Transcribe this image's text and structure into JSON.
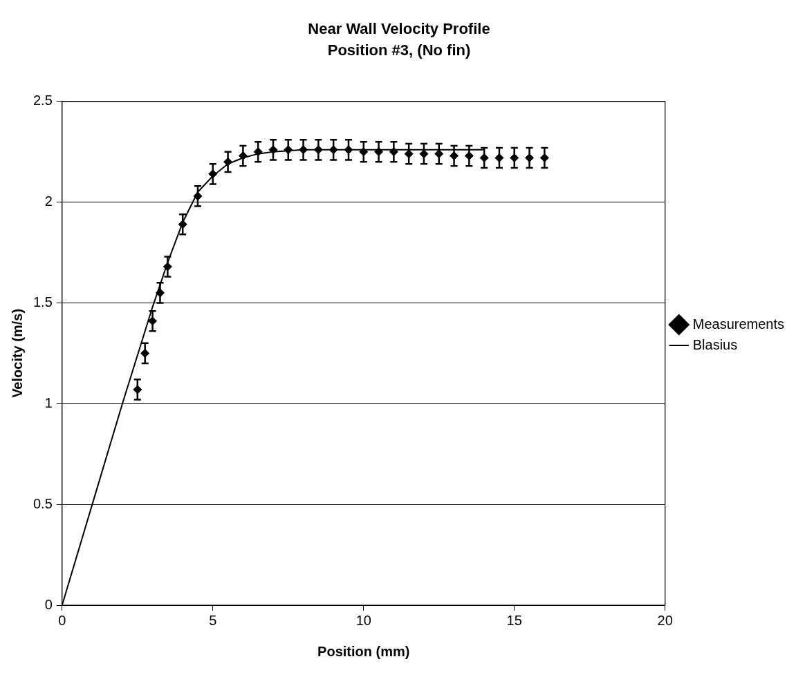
{
  "chart_data": {
    "type": "scatter",
    "title": "Near Wall Velocity Profile",
    "subtitle": "Position #3, (No fin)",
    "xlabel": "Position (mm)",
    "ylabel": "Velocity (m/s)",
    "xlim": [
      0,
      20
    ],
    "xticks": [
      0,
      5,
      10,
      15,
      20
    ],
    "ylim": [
      0,
      2.5
    ],
    "yticks": [
      0,
      0.5,
      1,
      1.5,
      2,
      2.5
    ],
    "grid": "y",
    "legend": "right",
    "series": [
      {
        "name": "Measurements",
        "type": "scatter",
        "marker": "diamond",
        "color": "#000000",
        "x": [
          2.5,
          2.75,
          3,
          3.25,
          3.5,
          4,
          4.5,
          5,
          5.5,
          6,
          6.5,
          7,
          7.5,
          8,
          8.5,
          9,
          9.5,
          10,
          10.5,
          11,
          11.5,
          12,
          12.5,
          13,
          13.5,
          14,
          14.5,
          15,
          15.5,
          16
        ],
        "values": [
          1.07,
          1.25,
          1.41,
          1.55,
          1.68,
          1.89,
          2.03,
          2.14,
          2.2,
          2.23,
          2.25,
          2.26,
          2.26,
          2.26,
          2.26,
          2.26,
          2.26,
          2.25,
          2.25,
          2.25,
          2.24,
          2.24,
          2.24,
          2.23,
          2.23,
          2.22,
          2.22,
          2.22,
          2.22,
          2.22
        ],
        "errors": [
          0.05,
          0.05,
          0.05,
          0.05,
          0.05,
          0.05,
          0.05,
          0.05,
          0.05,
          0.05,
          0.05,
          0.05,
          0.05,
          0.05,
          0.05,
          0.05,
          0.05,
          0.05,
          0.05,
          0.05,
          0.05,
          0.05,
          0.05,
          0.05,
          0.05,
          0.05,
          0.05,
          0.05,
          0.05,
          0.05
        ]
      },
      {
        "name": "Blasius",
        "type": "line",
        "marker": "none",
        "line_style": "solid",
        "color": "#000000",
        "x": [
          0,
          1,
          2,
          3,
          3.5,
          4,
          4.5,
          5,
          5.5,
          6,
          6.5,
          7,
          8,
          10,
          14
        ],
        "values": [
          0,
          0.5,
          1,
          1.48,
          1.7,
          1.9,
          2.05,
          2.13,
          2.19,
          2.22,
          2.24,
          2.25,
          2.26,
          2.26,
          2.26
        ]
      }
    ]
  }
}
